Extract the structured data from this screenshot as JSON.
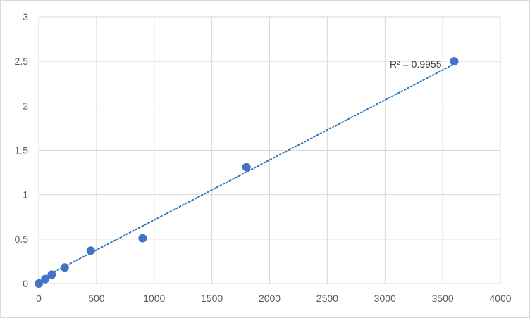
{
  "chart_data": {
    "type": "scatter",
    "title": "",
    "xlabel": "",
    "ylabel": "",
    "xlim": [
      0,
      4000
    ],
    "ylim": [
      0,
      3
    ],
    "x_ticks": [
      0,
      500,
      1000,
      1500,
      2000,
      2500,
      3000,
      3500,
      4000
    ],
    "y_ticks": [
      0,
      0.5,
      1,
      1.5,
      2,
      2.5,
      3
    ],
    "x_tick_labels": [
      "0",
      "500",
      "1000",
      "1500",
      "2000",
      "2500",
      "3000",
      "3500",
      "4000"
    ],
    "y_tick_labels": [
      "0",
      "0.5",
      "1",
      "1.5",
      "2",
      "2.5",
      "3"
    ],
    "grid": true,
    "legend": "none",
    "series": [
      {
        "x": [
          0,
          56.25,
          112.5,
          225,
          450,
          900,
          1800,
          3600
        ],
        "y": [
          0,
          0.05,
          0.1,
          0.18,
          0.37,
          0.51,
          1.31,
          2.5
        ],
        "color": "#4472c4"
      }
    ],
    "trendline": {
      "type": "linear",
      "style": "dotted",
      "color": "#2e75b6",
      "x_range": [
        0,
        3600
      ],
      "y_range": [
        0.04,
        2.47
      ],
      "r2_label": "R² = 0.9955"
    },
    "colors": {
      "grid": "#d9d9d9",
      "tick_text": "#595959",
      "marker": "#4472c4"
    }
  }
}
